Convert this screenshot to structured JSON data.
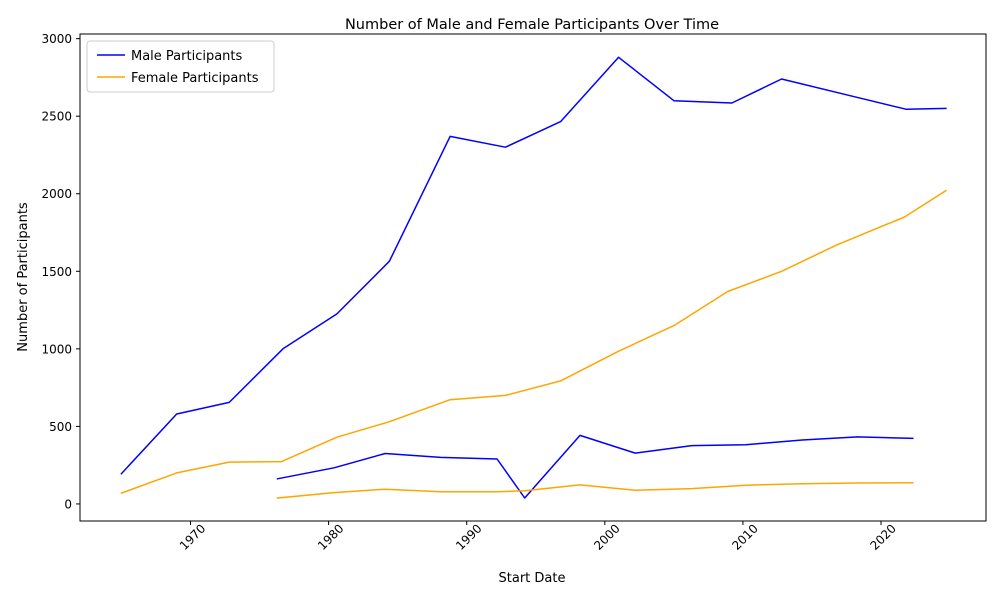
{
  "chart_data": {
    "type": "line",
    "title": "Number of Male and Female Participants Over Time",
    "xlabel": "Start Date",
    "ylabel": "Number of Participants",
    "xlim": [
      1962,
      2027.6
    ],
    "ylim": [
      -110,
      3030
    ],
    "xticks": [
      1970,
      1980,
      1990,
      2000,
      2010,
      2020
    ],
    "yticks": [
      0,
      500,
      1000,
      1500,
      2000,
      2500,
      3000
    ],
    "grid": false,
    "legend_position": "top-left",
    "series": [
      {
        "name": "Male Participants",
        "color": "#0000ff",
        "x": [
          1965.0,
          1969.0,
          1972.8,
          1976.7,
          1980.6,
          1984.4,
          1988.8,
          1992.8,
          1996.8,
          2001.0,
          2005.0,
          2009.2,
          2012.8,
          2018.1,
          2021.8,
          2024.7
        ],
        "y": [
          195,
          580,
          655,
          1000,
          1225,
          1565,
          2370,
          2300,
          2465,
          2880,
          2600,
          2585,
          2740,
          2625,
          2545,
          2550
        ]
      },
      {
        "name": "Female Participants",
        "color": "#ffa500",
        "x": [
          1965.0,
          1969.0,
          1972.8,
          1976.6,
          1980.6,
          1984.4,
          1988.8,
          1992.8,
          1996.8,
          2001.0,
          2005.0,
          2008.9,
          2012.8,
          2016.8,
          2021.7,
          2024.7
        ],
        "y": [
          70,
          200,
          270,
          273,
          430,
          530,
          672,
          700,
          793,
          985,
          1150,
          1370,
          1500,
          1670,
          1850,
          2020
        ]
      },
      {
        "name": "",
        "color": "#0000ff",
        "x": [
          1976.3,
          1980.4,
          1984.1,
          1988.1,
          1992.2,
          1994.2,
          1998.2,
          2002.2,
          2006.3,
          2010.2,
          2014.3,
          2018.3,
          2022.3
        ],
        "y": [
          162,
          233,
          325,
          300,
          290,
          38,
          442,
          328,
          376,
          382,
          412,
          432,
          423
        ]
      },
      {
        "name": "",
        "color": "#ffa500",
        "x": [
          1976.3,
          1980.4,
          1984.1,
          1988.1,
          1992.2,
          1994.2,
          1998.2,
          2002.2,
          2006.3,
          2010.2,
          2014.3,
          2018.3,
          2022.3
        ],
        "y": [
          38,
          73,
          95,
          78,
          78,
          85,
          123,
          88,
          99,
          121,
          130,
          135,
          137
        ]
      }
    ]
  }
}
